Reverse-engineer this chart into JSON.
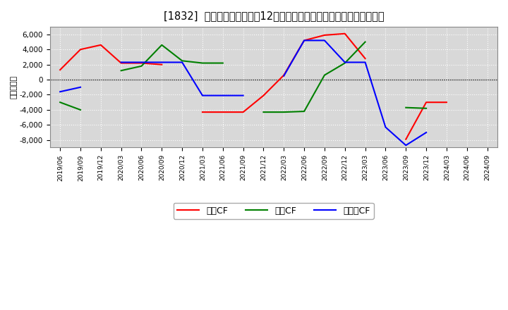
{
  "title": "[1832]  キャッシュフローの12か月移動合計の対前年同期増減額の推移",
  "ylabel": "（百万円）",
  "background_color": "#ffffff",
  "plot_bg_color": "#d8d8d8",
  "grid_color": "#ffffff",
  "x_labels": [
    "2019/06",
    "2019/09",
    "2019/12",
    "2020/03",
    "2020/06",
    "2020/09",
    "2020/12",
    "2021/03",
    "2021/06",
    "2021/09",
    "2021/12",
    "2022/03",
    "2022/06",
    "2022/09",
    "2022/12",
    "2023/03",
    "2023/06",
    "2023/09",
    "2023/12",
    "2024/03",
    "2024/06",
    "2024/09"
  ],
  "sales_cf": [
    1300,
    4000,
    4600,
    2200,
    2200,
    2000,
    null,
    -4300,
    -4300,
    -4300,
    -2100,
    600,
    5200,
    5900,
    6100,
    2800,
    null,
    -7900,
    -3000,
    -3000,
    null,
    null
  ],
  "invest_cf": [
    -3000,
    -4000,
    null,
    1200,
    1800,
    4600,
    2500,
    2200,
    2200,
    null,
    -4300,
    -4300,
    -4200,
    600,
    2200,
    5000,
    null,
    -3700,
    -3800,
    null,
    null,
    null
  ],
  "free_cf": [
    -1600,
    -1000,
    null,
    2300,
    2300,
    2300,
    2300,
    -2100,
    -2100,
    -2100,
    null,
    500,
    5200,
    5200,
    2300,
    2300,
    -6300,
    -8700,
    -7000,
    null,
    null,
    null
  ],
  "line_colors": {
    "sales": "#ff0000",
    "invest": "#008000",
    "free": "#0000ff"
  },
  "ylim": [
    -9000,
    7000
  ],
  "yticks": [
    -8000,
    -6000,
    -4000,
    -2000,
    0,
    2000,
    4000,
    6000
  ],
  "title_fontsize": 10.5,
  "legend_labels": [
    "営業CF",
    "投資CF",
    "フリーCF"
  ]
}
